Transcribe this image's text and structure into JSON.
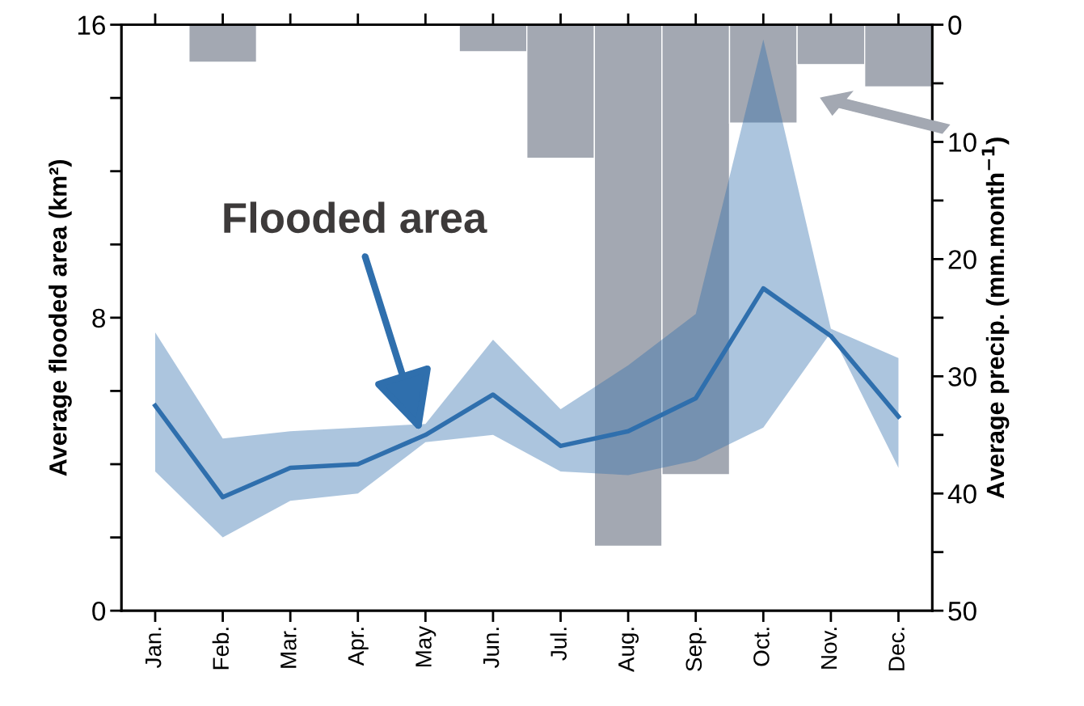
{
  "chart_data": {
    "type": "line",
    "ylabel": "Average flooded area (km²)",
    "y2label": "Average precip. (mm.month$^{−1}$)",
    "categories": [
      "Jan.",
      "Feb.",
      "Mar.",
      "Apr.",
      "May",
      "Jun.",
      "Jul.",
      "Aug.",
      "Sep.",
      "Oct.",
      "Nov.",
      "Dec."
    ],
    "series": [
      {
        "type": "bar",
        "axis": "y2",
        "color": "#a3a8b2",
        "values": [
          0,
          3.2,
          0,
          0,
          0,
          2.3,
          11.4,
          44.5,
          38.4,
          8.4,
          3.4,
          5.3
        ]
      },
      {
        "color": "#2f6fad",
        "values": [
          5.6,
          3.1,
          3.9,
          4.0,
          4.8,
          5.9,
          4.5,
          4.9,
          5.8,
          8.8,
          7.5,
          5.3
        ],
        "lower": [
          3.8,
          2.0,
          3.0,
          3.2,
          4.6,
          4.8,
          3.8,
          3.7,
          4.1,
          5.0,
          7.6,
          3.9
        ],
        "upper": [
          7.6,
          4.7,
          4.9,
          5.0,
          5.1,
          7.4,
          5.5,
          6.7,
          8.1,
          15.6,
          7.7,
          6.9
        ]
      }
    ],
    "ylim": [
      0,
      16
    ],
    "yticks": [
      0,
      {
        "value": 2,
        "label": null
      },
      {
        "value": 4,
        "label": null
      },
      {
        "value": 6,
        "label": null
      },
      8,
      {
        "value": 10,
        "label": null
      },
      {
        "value": 12,
        "label": null
      },
      {
        "value": 14,
        "label": null
      },
      16
    ],
    "y2lim": [
      50,
      0
    ],
    "y2ticks": [
      0,
      {
        "value": 5,
        "label": null
      },
      10,
      {
        "value": 15,
        "label": null
      },
      20,
      {
        "value": 25,
        "label": null
      },
      30,
      {
        "value": 35,
        "label": null
      },
      40,
      {
        "value": 45,
        "label": null
      },
      50
    ],
    "annotations": [
      "Flooded area"
    ],
    "grid": false,
    "legend": false,
    "marker": "none",
    "line_style": "solid"
  }
}
